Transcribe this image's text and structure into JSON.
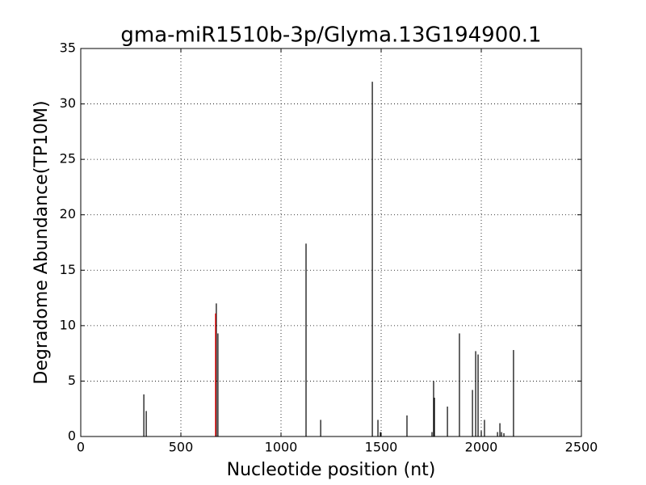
{
  "chart_data": {
    "type": "stem",
    "title": "gma-miR1510b-3p/Glyma.13G194900.1",
    "x_label": "Nucleotide position (nt)",
    "y_label": "Degradome Abundance(TP10M)",
    "series": [
      {
        "color": "#000000",
        "x": [
          315,
          327,
          677,
          685,
          1125,
          1198,
          1456,
          1484,
          1496,
          1629,
          1754,
          1762,
          1766,
          1831,
          1891,
          1956,
          1972,
          1984,
          2000,
          2016,
          2081,
          2093,
          2101,
          2113,
          2161
        ],
        "values": [
          3.8,
          2.3,
          12.0,
          9.3,
          17.4,
          1.5,
          32.0,
          1.5,
          0.4,
          1.9,
          0.4,
          5.0,
          3.5,
          2.7,
          9.3,
          4.2,
          7.7,
          7.4,
          0.5,
          1.5,
          0.4,
          1.2,
          0.4,
          0.3,
          7.8
        ]
      },
      {
        "color": "#ff0000",
        "x": [
          673
        ],
        "values": [
          11.1
        ]
      }
    ],
    "xlim": [
      0,
      2500
    ],
    "xticks": [
      0,
      500,
      1000,
      1500,
      2000,
      2500
    ],
    "ylim": [
      0,
      35
    ],
    "yticks": [
      0,
      5,
      10,
      15,
      20,
      25,
      30,
      35
    ],
    "grid": true
  }
}
